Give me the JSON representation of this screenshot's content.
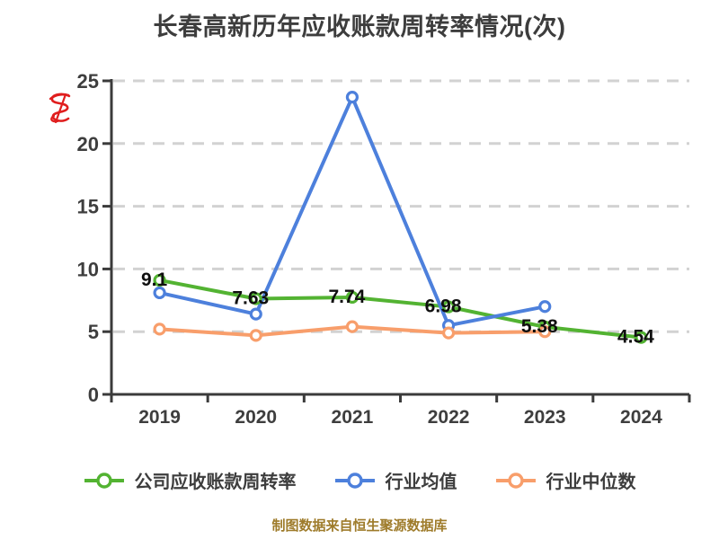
{
  "title": "长春高新历年应收账款周转率情况(次)",
  "footer": "制图数据来自恒生聚源数据库",
  "watermark": {
    "name": "red-scribble-monogram",
    "color": "#e01e1e"
  },
  "axes": {
    "y_tick_labels": [
      "0",
      "5",
      "10",
      "15",
      "20",
      "25"
    ],
    "x_tick_labels": [
      "2019",
      "2020",
      "2021",
      "2022",
      "2023",
      "2024"
    ]
  },
  "legend": {
    "items": [
      "公司应收账款周转率",
      "行业均值",
      "行业中位数"
    ]
  },
  "colors": {
    "axis": "#3b3b3b",
    "grid": "#d2d2d2",
    "tick_text": "#3e3e3e",
    "title_text": "#3d3d3d",
    "value_label_text": "#0f0f0f",
    "footer_text": "#9e7b2a",
    "series_green": "#53b332",
    "series_blue": "#4d80dc",
    "series_orange": "#f89e6b"
  },
  "chart_data": {
    "type": "line",
    "title": "长春高新历年应收账款周转率情况(次)",
    "categories": [
      "2019",
      "2020",
      "2021",
      "2022",
      "2023",
      "2024"
    ],
    "series": [
      {
        "name": "公司应收账款周转率",
        "color": "#53b332",
        "values": [
          9.1,
          7.63,
          7.74,
          6.98,
          5.38,
          4.54
        ],
        "data_labels": [
          "9.1",
          "7.63",
          "7.74",
          "6.98",
          "5.38",
          "4.54"
        ]
      },
      {
        "name": "行业均值",
        "color": "#4d80dc",
        "values": [
          8.1,
          6.4,
          23.7,
          5.5,
          7.0,
          null
        ]
      },
      {
        "name": "行业中位数",
        "color": "#f89e6b",
        "values": [
          5.2,
          4.7,
          5.4,
          4.9,
          5.0,
          null
        ]
      }
    ],
    "ylim": [
      0,
      25
    ],
    "yticks": [
      0,
      5,
      10,
      15,
      20,
      25
    ],
    "grid": true,
    "grid_style": "dashed",
    "legend_position": "bottom",
    "marker": "circle-white-fill",
    "xlabel": "",
    "ylabel": ""
  }
}
